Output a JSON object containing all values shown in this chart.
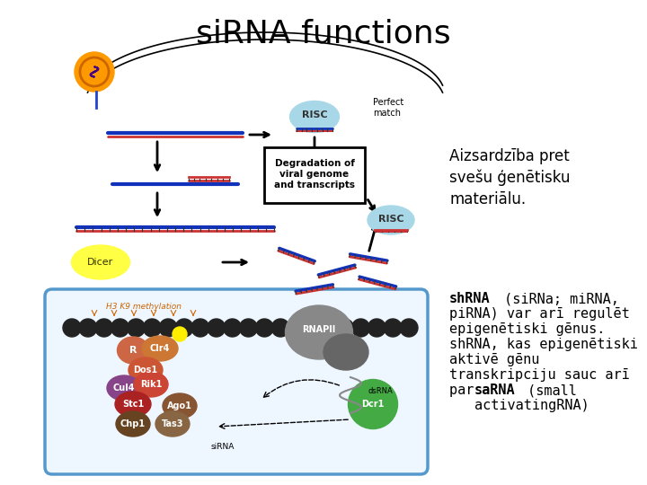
{
  "title": "siRNA functions",
  "title_fontsize": 26,
  "background_color": "#ffffff",
  "text1": "Aizsardziba pret\nsvešu ģenētisku\nmaterialāu.",
  "text1_fontsize": 12,
  "text2_fontsize": 11,
  "shrna_bold": "shRNA",
  "text2_line1": " (siRNa; miRNA,",
  "text2_rest": "piRNA) var arī regulēt\nepigenētiski gēnus.\nshRNA, kas epigenētiski\naktivē gēnu\ntranskripciju sauc arī\npar ",
  "sarna_bold": "saRNA",
  "text2_end": " (small\nactivatingRNA)"
}
